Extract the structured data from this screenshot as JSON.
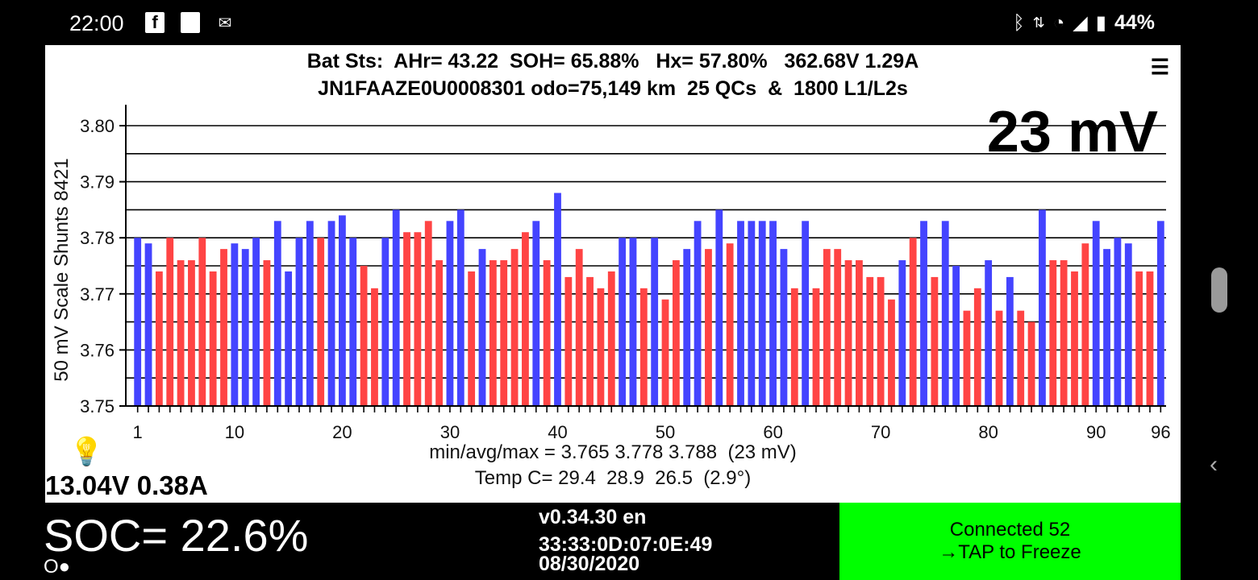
{
  "status_bar": {
    "time": "22:00",
    "left_icons": [
      "facebook-icon",
      "square-icon",
      "outlook-icon"
    ],
    "right_icons": [
      "bluetooth-icon",
      "data-arrows-icon",
      "wifi-icon",
      "signal-icon",
      "battery-icon"
    ],
    "battery_percent": "44%"
  },
  "header": {
    "line1": "Bat Sts:  AHr= 43.22  SOH= 65.88%   Hx= 57.80%   362.68V 1.29A",
    "line2": "JN1FAAZE0U0008301 odo=75,149 km  25 QCs  &  1800 L1/L2s",
    "menu_icon": "menu-icon"
  },
  "chart_data": {
    "type": "bar",
    "ylabel": "50 mV Scale   Shunts 8421",
    "ylim": [
      3.75,
      3.8
    ],
    "yticks": [
      "3.80",
      "3.79",
      "3.78",
      "3.77",
      "3.76",
      "3.75"
    ],
    "xticks": [
      "1",
      "10",
      "20",
      "30",
      "40",
      "50",
      "60",
      "70",
      "80",
      "90",
      "96"
    ],
    "spread_label": "23 mV",
    "colors": {
      "blue": "#4444ff",
      "red": "#ff4444"
    },
    "x": [
      1,
      2,
      3,
      4,
      5,
      6,
      7,
      8,
      9,
      10,
      11,
      12,
      13,
      14,
      15,
      16,
      17,
      18,
      19,
      20,
      21,
      22,
      23,
      24,
      25,
      26,
      27,
      28,
      29,
      30,
      31,
      32,
      33,
      34,
      35,
      36,
      37,
      38,
      39,
      40,
      41,
      42,
      43,
      44,
      45,
      46,
      47,
      48,
      49,
      50,
      51,
      52,
      53,
      54,
      55,
      56,
      57,
      58,
      59,
      60,
      61,
      62,
      63,
      64,
      65,
      66,
      67,
      68,
      69,
      70,
      71,
      72,
      73,
      74,
      75,
      76,
      77,
      78,
      79,
      80,
      81,
      82,
      83,
      84,
      85,
      86,
      87,
      88,
      89,
      90,
      91,
      92,
      93,
      94,
      95,
      96
    ],
    "values": [
      3.78,
      3.779,
      3.774,
      3.78,
      3.776,
      3.776,
      3.78,
      3.774,
      3.778,
      3.779,
      3.778,
      3.78,
      3.776,
      3.783,
      3.774,
      3.78,
      3.783,
      3.78,
      3.783,
      3.784,
      3.78,
      3.775,
      3.771,
      3.78,
      3.785,
      3.781,
      3.781,
      3.783,
      3.776,
      3.783,
      3.785,
      3.774,
      3.778,
      3.776,
      3.776,
      3.778,
      3.781,
      3.783,
      3.776,
      3.788,
      3.773,
      3.778,
      3.773,
      3.771,
      3.774,
      3.78,
      3.78,
      3.771,
      3.78,
      3.769,
      3.776,
      3.778,
      3.783,
      3.778,
      3.785,
      3.779,
      3.783,
      3.783,
      3.783,
      3.783,
      3.778,
      3.771,
      3.783,
      3.771,
      3.778,
      3.778,
      3.776,
      3.776,
      3.773,
      3.773,
      3.769,
      3.776,
      3.78,
      3.783,
      3.773,
      3.783,
      3.775,
      3.767,
      3.771,
      3.776,
      3.767,
      3.773,
      3.767,
      3.765,
      3.785,
      3.776,
      3.776,
      3.774,
      3.779,
      3.783,
      3.778,
      3.78,
      3.779,
      3.774,
      3.774,
      3.783
    ],
    "bar_colors": [
      "blue",
      "blue",
      "red",
      "red",
      "red",
      "red",
      "red",
      "red",
      "red",
      "blue",
      "blue",
      "blue",
      "red",
      "blue",
      "blue",
      "blue",
      "blue",
      "red",
      "blue",
      "blue",
      "blue",
      "red",
      "red",
      "blue",
      "blue",
      "red",
      "red",
      "red",
      "red",
      "blue",
      "blue",
      "red",
      "blue",
      "red",
      "red",
      "red",
      "red",
      "blue",
      "red",
      "blue",
      "red",
      "red",
      "red",
      "red",
      "red",
      "blue",
      "blue",
      "red",
      "blue",
      "red",
      "red",
      "blue",
      "blue",
      "red",
      "blue",
      "red",
      "blue",
      "blue",
      "blue",
      "blue",
      "blue",
      "red",
      "blue",
      "red",
      "red",
      "red",
      "red",
      "red",
      "red",
      "red",
      "red",
      "blue",
      "red",
      "blue",
      "red",
      "blue",
      "blue",
      "red",
      "red",
      "blue",
      "red",
      "blue",
      "red",
      "red",
      "blue",
      "red",
      "red",
      "red",
      "red",
      "blue",
      "blue",
      "blue",
      "blue",
      "red",
      "red",
      "blue"
    ]
  },
  "stats": {
    "minavgmax": "min/avg/max = 3.765 3.778 3.788  (23 mV)",
    "temp": "Temp C= 29.4  28.9  26.5  (2.9°)",
    "bulb_icon": "lightbulb-icon",
    "pack_va": "13.04V 0.38A"
  },
  "bottom": {
    "soc": "SOC= 22.6%",
    "dots": "O●",
    "version": "v0.34.30 en",
    "mac": "33:33:0D:07:0E:49",
    "date": "08/30/2020",
    "connect_line1": "Connected 52",
    "connect_line2": "→TAP to Freeze"
  }
}
